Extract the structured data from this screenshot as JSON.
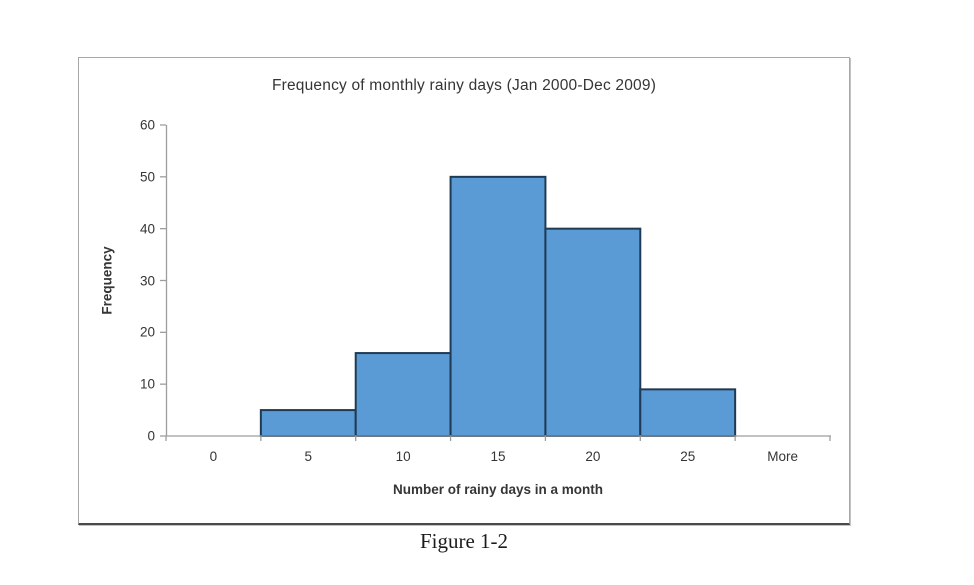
{
  "figure": {
    "caption": "Figure 1-2"
  },
  "chart_data": {
    "type": "bar",
    "subtype": "histogram",
    "title": "Frequency of monthly rainy days (Jan 2000-Dec 2009)",
    "xlabel": "Number of rainy days in a month",
    "ylabel": "Frequency",
    "categories": [
      "0",
      "5",
      "10",
      "15",
      "20",
      "25",
      "More"
    ],
    "values": [
      0,
      5,
      16,
      50,
      40,
      9,
      0
    ],
    "ylim": [
      0,
      60
    ],
    "y_ticks": [
      0,
      10,
      20,
      30,
      40,
      50,
      60
    ],
    "gap_width_percent": 0,
    "grid": false,
    "legend": "none",
    "colors": {
      "bar_fill": "#5b9bd5",
      "bar_border": "#1f3a54",
      "axis": "#9d9d9d",
      "text": "#353535"
    }
  }
}
